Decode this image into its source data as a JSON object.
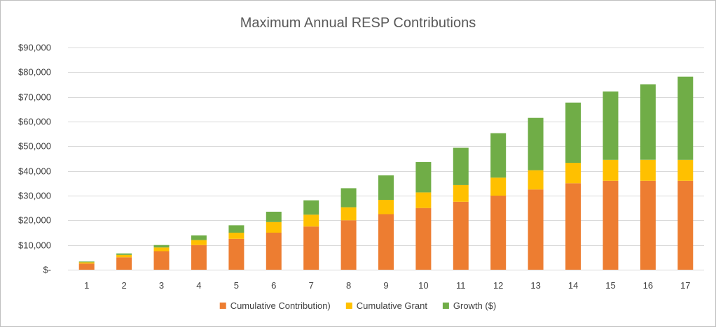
{
  "chart_data": {
    "type": "bar",
    "stacked": true,
    "title": "Maximum Annual RESP Contributions",
    "xlabel": "",
    "ylabel": "",
    "categories": [
      "1",
      "2",
      "3",
      "4",
      "5",
      "6",
      "7",
      "8",
      "9",
      "10",
      "11",
      "12",
      "13",
      "14",
      "15",
      "16",
      "17"
    ],
    "series": [
      {
        "name": "Cumulative Contribution)",
        "color": "#ED7D31",
        "values": [
          2500,
          5000,
          7500,
          10000,
          12500,
          15000,
          17500,
          20000,
          22500,
          25000,
          27500,
          30000,
          32500,
          35000,
          36000,
          36000,
          36000
        ]
      },
      {
        "name": "Cumulative Grant",
        "color": "#FFC000",
        "values": [
          500,
          1000,
          1500,
          2000,
          2500,
          4300,
          4800,
          5300,
          5800,
          6300,
          6800,
          7300,
          7800,
          8300,
          8500,
          8500,
          8500
        ]
      },
      {
        "name": "Growth ($)",
        "color": "#70AD47",
        "values": [
          300,
          600,
          1000,
          1900,
          3000,
          4200,
          5800,
          7700,
          9900,
          12300,
          15100,
          18000,
          21200,
          24400,
          27700,
          30600,
          33700
        ]
      }
    ],
    "ylim": [
      0,
      90000
    ],
    "yticks": [
      0,
      10000,
      20000,
      30000,
      40000,
      50000,
      60000,
      70000,
      80000,
      90000
    ],
    "ytick_labels": [
      "$-",
      "$10,000",
      "$20,000",
      "$30,000",
      "$40,000",
      "$50,000",
      "$60,000",
      "$70,000",
      "$80,000",
      "$90,000"
    ],
    "grid": true,
    "legend_position": "bottom"
  }
}
